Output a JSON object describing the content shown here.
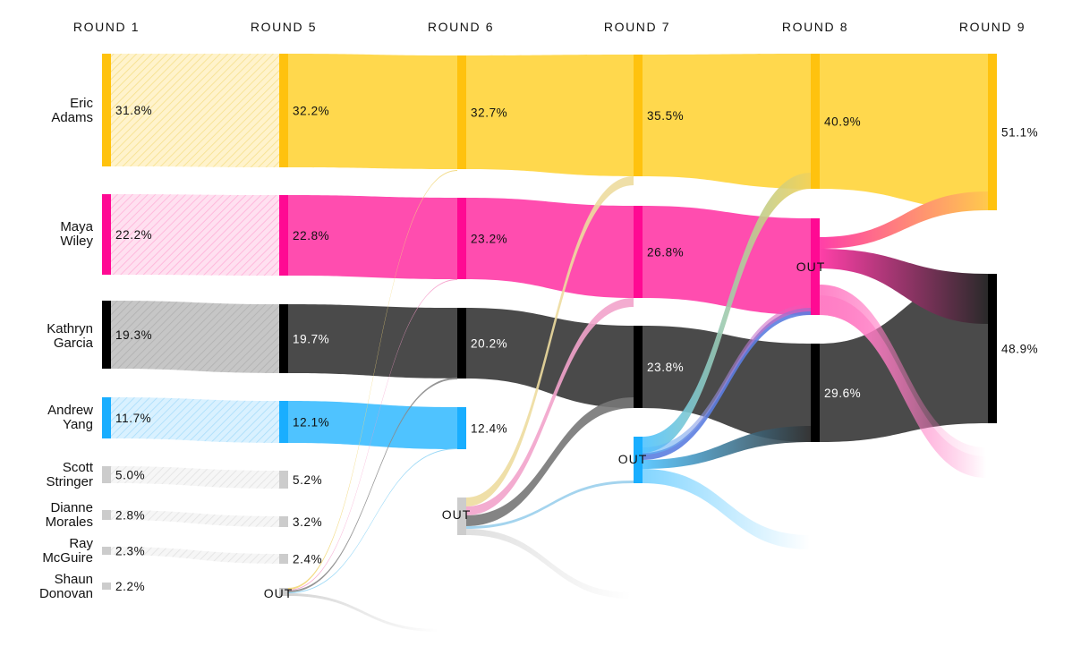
{
  "chart_data": {
    "type": "sankey",
    "title": "",
    "rounds": [
      "ROUND 1",
      "ROUND 5",
      "ROUND 6",
      "ROUND 7",
      "ROUND 8",
      "ROUND 9"
    ],
    "candidates": [
      {
        "key": "adams",
        "label": [
          "Eric",
          "Adams"
        ],
        "color": "#FFC20E",
        "flow": "#FFD84D",
        "values": [
          31.8,
          32.2,
          32.7,
          35.5,
          40.9,
          51.1
        ],
        "text": [
          "31.8%",
          "32.2%",
          "32.7%",
          "35.5%",
          "40.9%",
          "51.1%"
        ]
      },
      {
        "key": "wiley",
        "label": [
          "Maya",
          "Wiley"
        ],
        "color": "#FF0A93",
        "flow": "#FF4DAF",
        "values": [
          22.2,
          22.8,
          23.2,
          26.8,
          null,
          null
        ],
        "text": [
          "22.2%",
          "22.8%",
          "23.2%",
          "26.8%",
          "",
          ""
        ]
      },
      {
        "key": "garcia",
        "label": [
          "Kathryn",
          "Garcia"
        ],
        "color": "#000000",
        "flow": "#4A4A4A",
        "values": [
          19.3,
          19.7,
          20.2,
          23.8,
          29.6,
          48.9
        ],
        "text": [
          "19.3%",
          "19.7%",
          "20.2%",
          "23.8%",
          "29.6%",
          "48.9%"
        ]
      },
      {
        "key": "yang",
        "label": [
          "Andrew",
          "Yang"
        ],
        "color": "#19AEFF",
        "flow": "#4FC3FF",
        "values": [
          11.7,
          12.1,
          12.4,
          null,
          null,
          null
        ],
        "text": [
          "11.7%",
          "12.1%",
          "12.4%",
          "",
          "",
          ""
        ]
      },
      {
        "key": "stringer",
        "label": [
          "Scott",
          "Stringer"
        ],
        "color": "#CCCCCC",
        "flow": "#DDDDDD",
        "values": [
          5.0,
          5.2,
          null,
          null,
          null,
          null
        ],
        "text": [
          "5.0%",
          "5.2%",
          "",
          "",
          "",
          ""
        ]
      },
      {
        "key": "morales",
        "label": [
          "Dianne",
          "Morales"
        ],
        "color": "#CCCCCC",
        "flow": "#DDDDDD",
        "values": [
          2.8,
          3.2,
          null,
          null,
          null,
          null
        ],
        "text": [
          "2.8%",
          "3.2%",
          "",
          "",
          "",
          ""
        ]
      },
      {
        "key": "mcguire",
        "label": [
          "Ray",
          "McGuire"
        ],
        "color": "#CCCCCC",
        "flow": "#DDDDDD",
        "values": [
          2.3,
          2.4,
          null,
          null,
          null,
          null
        ],
        "text": [
          "2.3%",
          "2.4%",
          "",
          "",
          "",
          ""
        ]
      },
      {
        "key": "donovan",
        "label": [
          "Shaun",
          "Donovan"
        ],
        "color": "#CCCCCC",
        "flow": "#DDDDDD",
        "values": [
          2.2,
          null,
          null,
          null,
          null,
          null
        ],
        "text": [
          "2.2%",
          "",
          "",
          "",
          "",
          ""
        ]
      }
    ],
    "eliminations": [
      {
        "round_index": 1,
        "candidate": "donovan",
        "label": "OUT"
      },
      {
        "round_index": 2,
        "candidate": "stringer,morales,mcguire",
        "label": "OUT"
      },
      {
        "round_index": 3,
        "candidate": "yang",
        "label": "OUT"
      },
      {
        "round_index": 4,
        "candidate": "wiley",
        "label": "OUT"
      }
    ]
  }
}
